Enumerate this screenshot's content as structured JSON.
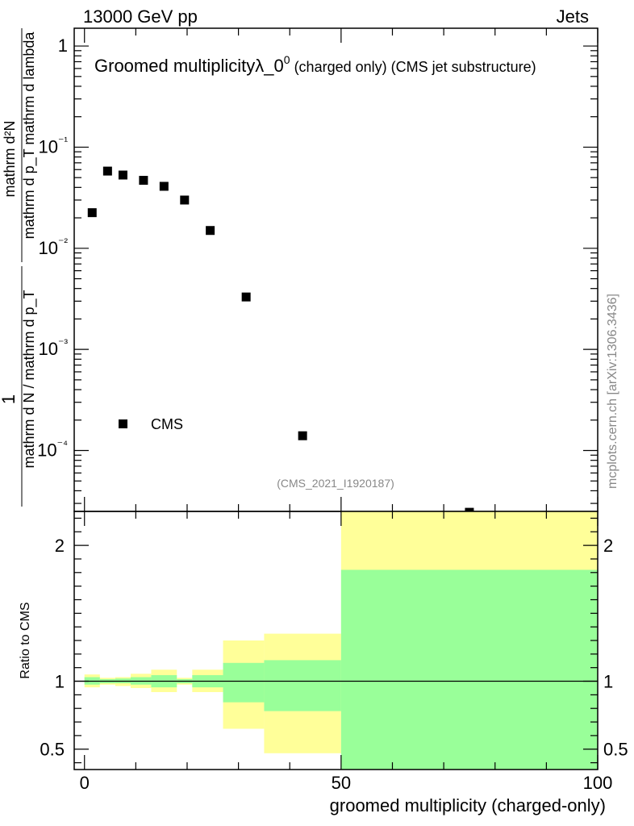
{
  "header": {
    "energy_label": "13000 GeV pp",
    "process_label": "Jets"
  },
  "watermark": "mcplots.cern.ch [arXiv:1306.3436]",
  "analysis_tag": "(CMS_2021_I1920187)",
  "colors": {
    "band_outer": "#ffff99",
    "band_inner": "#99ff99",
    "marker": "#000000",
    "line": "#000000"
  },
  "chart_data": [
    {
      "type": "scatter",
      "title_main": "Groomed multiplicity",
      "title_lambda": "λ_0",
      "title_sup": "0",
      "title_rest": " (charged only) (CMS jet substructure)",
      "ylabel_numer": "mathrm d²N",
      "ylabel_denom": "mathrm d p_T mathrm d lambda",
      "ylabel_one": "1",
      "ylabel_prefactor": "mathrm d N / mathrm d p_T",
      "yscale": "log",
      "ylim": [
        2.5e-05,
        1.5
      ],
      "xlim": [
        -2,
        100
      ],
      "ytick_labels": [
        "1",
        "10⁻¹",
        "10⁻²",
        "10⁻³",
        "10⁻⁴"
      ],
      "ytick_values": [
        1,
        0.1,
        0.01,
        0.001,
        0.0001
      ],
      "legend": "CMS",
      "series": [
        {
          "name": "CMS",
          "x": [
            1.5,
            4.5,
            7.5,
            11.5,
            15.5,
            19.5,
            24.5,
            31.5,
            42.5,
            75
          ],
          "y": [
            0.0225,
            0.058,
            0.053,
            0.047,
            0.041,
            0.03,
            0.015,
            0.0033,
            0.00014,
            2.45e-05
          ]
        }
      ]
    },
    {
      "type": "area",
      "ylabel": "Ratio to CMS",
      "xlabel": "groomed multiplicity (charged-only)",
      "xlim": [
        -2,
        100
      ],
      "ylim": [
        0.35,
        2.25
      ],
      "xtick_labels": [
        "0",
        "50",
        "100"
      ],
      "xtick_values": [
        0,
        50,
        100
      ],
      "ytick_labels": [
        "0.5",
        "1",
        "2"
      ],
      "ytick_values": [
        0.5,
        1,
        2
      ],
      "reference_line": 1,
      "bins": [
        0,
        3,
        6,
        9,
        13,
        18,
        21,
        27,
        35,
        50,
        100
      ],
      "inner_low": [
        0.975,
        0.985,
        0.985,
        0.975,
        0.955,
        0.985,
        0.955,
        0.845,
        0.78,
        0.35
      ],
      "inner_high": [
        1.03,
        1.015,
        1.02,
        1.03,
        1.045,
        1.015,
        1.045,
        1.135,
        1.155,
        1.82
      ],
      "outer_low": [
        0.955,
        0.975,
        0.965,
        0.95,
        0.92,
        0.975,
        0.92,
        0.65,
        0.47,
        0.35
      ],
      "outer_high": [
        1.05,
        1.025,
        1.03,
        1.055,
        1.085,
        1.025,
        1.085,
        1.3,
        1.35,
        2.25
      ]
    }
  ]
}
